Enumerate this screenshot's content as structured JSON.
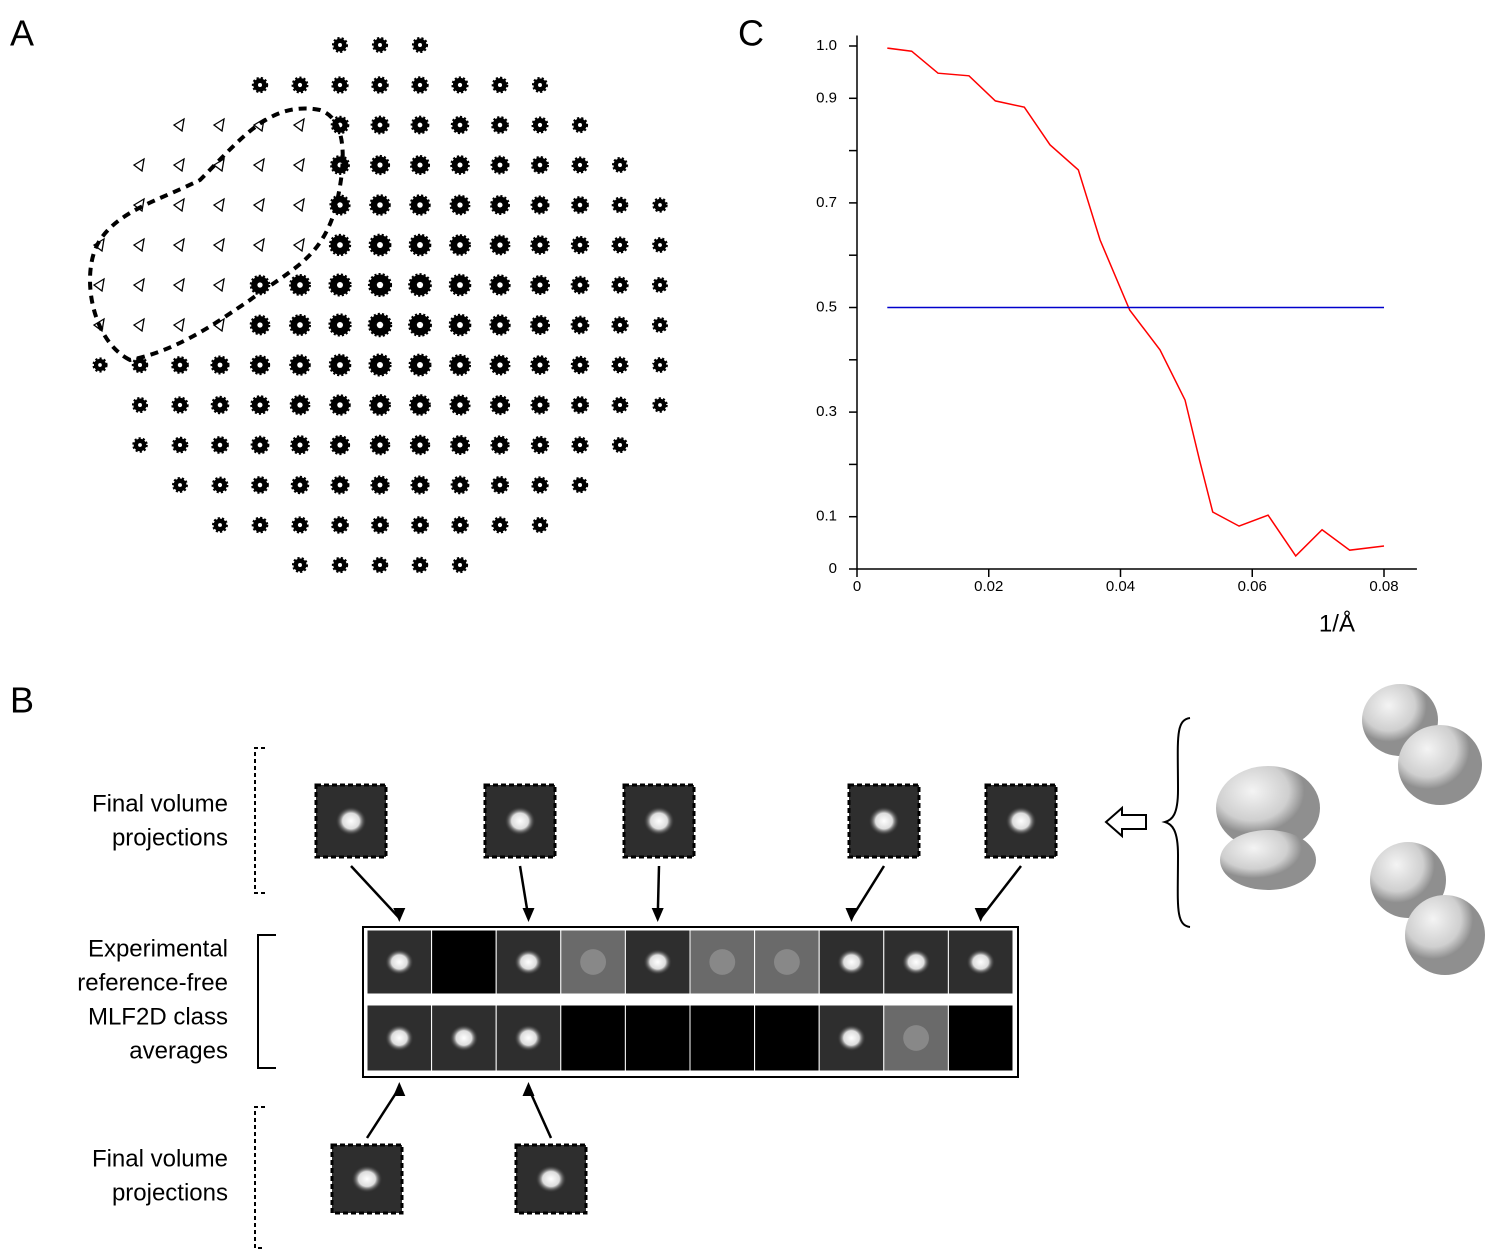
{
  "panels": {
    "a": "A",
    "b": "B",
    "c": "C"
  },
  "panel_b": {
    "top_label": [
      "Final volume",
      "projections"
    ],
    "middle_label": [
      "Experimental",
      "reference-free",
      "MLF2D class",
      "averages"
    ],
    "bottom_label": [
      "Final volume",
      "projections"
    ]
  },
  "chart_data": {
    "type": "line",
    "xlabel": "1/Å",
    "xlim": [
      0,
      0.085
    ],
    "ylim": [
      0,
      1.02
    ],
    "xticks": [
      0,
      0.02,
      0.04,
      0.06,
      0.08
    ],
    "yticks": [
      0,
      0.1,
      0.3,
      0.5,
      0.7,
      0.9,
      {
        "value": 1,
        "label": "1.0"
      }
    ],
    "yminorticks": [
      0.2,
      0.4,
      0.6,
      0.8
    ],
    "series": [
      {
        "color": "#ff0000",
        "x": [
          0.0046,
          0.0083,
          0.0123,
          0.017,
          0.021,
          0.0254,
          0.0293,
          0.0336,
          0.0369,
          0.0414,
          0.046,
          0.0498,
          0.052,
          0.054,
          0.058,
          0.0624,
          0.0666,
          0.0706,
          0.0748,
          0.08
        ],
        "values": [
          0.996,
          0.99,
          0.948,
          0.943,
          0.895,
          0.883,
          0.811,
          0.763,
          0.629,
          0.495,
          0.419,
          0.323,
          0.208,
          0.109,
          0.082,
          0.103,
          0.025,
          0.075,
          0.036,
          0.044
        ]
      },
      {
        "color": "#0000cc",
        "x": [
          0.0046,
          0.08
        ],
        "values": [
          0.5,
          0.5
        ]
      }
    ]
  }
}
